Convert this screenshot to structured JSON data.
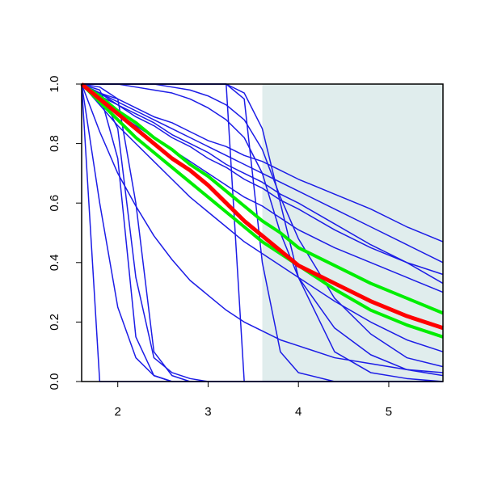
{
  "chart_data": {
    "type": "line",
    "x": [
      1.6,
      1.8,
      2.0,
      2.2,
      2.4,
      2.6,
      2.8,
      3.0,
      3.2,
      3.4,
      3.6,
      3.8,
      4.0,
      4.4,
      4.8,
      5.2,
      5.6
    ],
    "xlim": [
      1.6,
      5.6
    ],
    "ylim": [
      0,
      1
    ],
    "xticks": [
      2,
      3,
      4,
      5
    ],
    "yticks": [
      {
        "value": 0,
        "label": "0.0"
      },
      {
        "value": 0.2,
        "label": "0.2"
      },
      {
        "value": 0.4,
        "label": "0.4"
      },
      {
        "value": 0.6,
        "label": "0.6"
      },
      {
        "value": 0.8,
        "label": "0.8"
      },
      {
        "value": 1,
        "label": "1.0"
      }
    ],
    "shade": {
      "xlim": [
        3.6,
        5.6
      ],
      "color": "#e0eded"
    },
    "series": [
      {
        "color": "#1c1ce6",
        "values": [
          1,
          0.97,
          0.95,
          0.92,
          0.89,
          0.87,
          0.84,
          0.81,
          0.79,
          0.76,
          0.74,
          0.71,
          0.68,
          0.63,
          0.58,
          0.52,
          0.47
        ]
      },
      {
        "color": "#1c1ce6",
        "values": [
          1,
          0.97,
          0.94,
          0.91,
          0.88,
          0.85,
          0.82,
          0.79,
          0.76,
          0.73,
          0.7,
          0.67,
          0.64,
          0.58,
          0.52,
          0.46,
          0.4
        ]
      },
      {
        "color": "#1c1ce6",
        "values": [
          1,
          0.97,
          0.93,
          0.9,
          0.87,
          0.83,
          0.8,
          0.77,
          0.73,
          0.7,
          0.67,
          0.63,
          0.6,
          0.53,
          0.46,
          0.4,
          0.33
        ]
      },
      {
        "color": "#1c1ce6",
        "values": [
          1,
          0.96,
          0.93,
          0.89,
          0.86,
          0.82,
          0.79,
          0.75,
          0.72,
          0.68,
          0.65,
          0.61,
          0.58,
          0.51,
          0.45,
          0.4,
          0.36
        ]
      },
      {
        "color": "#1c1ce6",
        "values": [
          1,
          0.95,
          0.9,
          0.86,
          0.82,
          0.78,
          0.74,
          0.7,
          0.66,
          0.62,
          0.59,
          0.55,
          0.51,
          0.45,
          0.4,
          0.35,
          0.3
        ]
      },
      {
        "color": "#1c1ce6",
        "values": [
          1,
          0.93,
          0.86,
          0.8,
          0.74,
          0.68,
          0.62,
          0.57,
          0.52,
          0.47,
          0.43,
          0.39,
          0.35,
          0.27,
          0.2,
          0.14,
          0.1
        ]
      },
      {
        "color": "#1c1ce6",
        "values": [
          1,
          0.84,
          0.7,
          0.59,
          0.49,
          0.41,
          0.34,
          0.29,
          0.24,
          0.2,
          0.17,
          0.14,
          0.12,
          0.08,
          0.06,
          0.04,
          0.03
        ]
      },
      {
        "color": "#1c1ce6",
        "values": [
          1,
          0.97,
          0.75,
          0.15,
          0.02,
          0,
          0,
          0,
          0,
          0,
          0,
          0,
          0,
          0,
          0,
          0,
          0
        ]
      },
      {
        "color": "#1c1ce6",
        "values": [
          1,
          0.99,
          0.95,
          0.6,
          0.1,
          0.02,
          0,
          0,
          0,
          0,
          0,
          0,
          0,
          0,
          0,
          0,
          0
        ]
      },
      {
        "color": "#1c1ce6",
        "values": [
          1,
          0.6,
          0.25,
          0.08,
          0.02,
          0,
          0,
          0,
          0,
          0,
          0,
          0,
          0,
          0,
          0,
          0,
          0
        ]
      },
      {
        "color": "#1c1ce6",
        "values": [
          1,
          0,
          0,
          0,
          0,
          0,
          0,
          0,
          0,
          0,
          0,
          0,
          0,
          0,
          0,
          0,
          0
        ]
      },
      {
        "color": "#1c1ce6",
        "values": [
          1,
          0.98,
          0.85,
          0.35,
          0.08,
          0.03,
          0.01,
          0,
          0,
          0,
          0,
          0,
          0,
          0,
          0,
          0,
          0
        ]
      },
      {
        "color": "#1c1ce6",
        "values": [
          1,
          1,
          1,
          1,
          1,
          1,
          1,
          1,
          1,
          0,
          0,
          0,
          0,
          0,
          0,
          0,
          0
        ]
      },
      {
        "color": "#1c1ce6",
        "values": [
          1,
          1,
          1,
          1,
          1,
          1,
          1,
          1,
          1,
          0.95,
          0.4,
          0.1,
          0.03,
          0,
          0,
          0,
          0
        ]
      },
      {
        "color": "#1c1ce6",
        "values": [
          1,
          1,
          1,
          1,
          1,
          1,
          1,
          1,
          1,
          0.97,
          0.85,
          0.6,
          0.35,
          0.1,
          0.03,
          0.01,
          0
        ]
      },
      {
        "color": "#1c1ce6",
        "values": [
          1,
          1,
          1,
          0.99,
          0.98,
          0.97,
          0.95,
          0.92,
          0.88,
          0.82,
          0.7,
          0.5,
          0.35,
          0.18,
          0.09,
          0.04,
          0.02
        ]
      },
      {
        "color": "#1c1ce6",
        "values": [
          1,
          1,
          1,
          1,
          1,
          0.99,
          0.98,
          0.96,
          0.93,
          0.88,
          0.78,
          0.62,
          0.48,
          0.28,
          0.16,
          0.08,
          0.05
        ]
      },
      {
        "color": "#00ee00",
        "values": [
          1,
          0.96,
          0.91,
          0.87,
          0.82,
          0.78,
          0.73,
          0.69,
          0.64,
          0.59,
          0.54,
          0.5,
          0.45,
          0.39,
          0.33,
          0.28,
          0.23
        ]
      },
      {
        "color": "#00ee00",
        "values": [
          1,
          0.94,
          0.88,
          0.82,
          0.77,
          0.72,
          0.67,
          0.62,
          0.57,
          0.52,
          0.47,
          0.43,
          0.39,
          0.31,
          0.24,
          0.19,
          0.15
        ]
      },
      {
        "color": "#ff0000",
        "values": [
          1,
          0.95,
          0.9,
          0.85,
          0.8,
          0.75,
          0.71,
          0.66,
          0.6,
          0.54,
          0.49,
          0.44,
          0.39,
          0.33,
          0.27,
          0.22,
          0.18
        ]
      }
    ]
  }
}
